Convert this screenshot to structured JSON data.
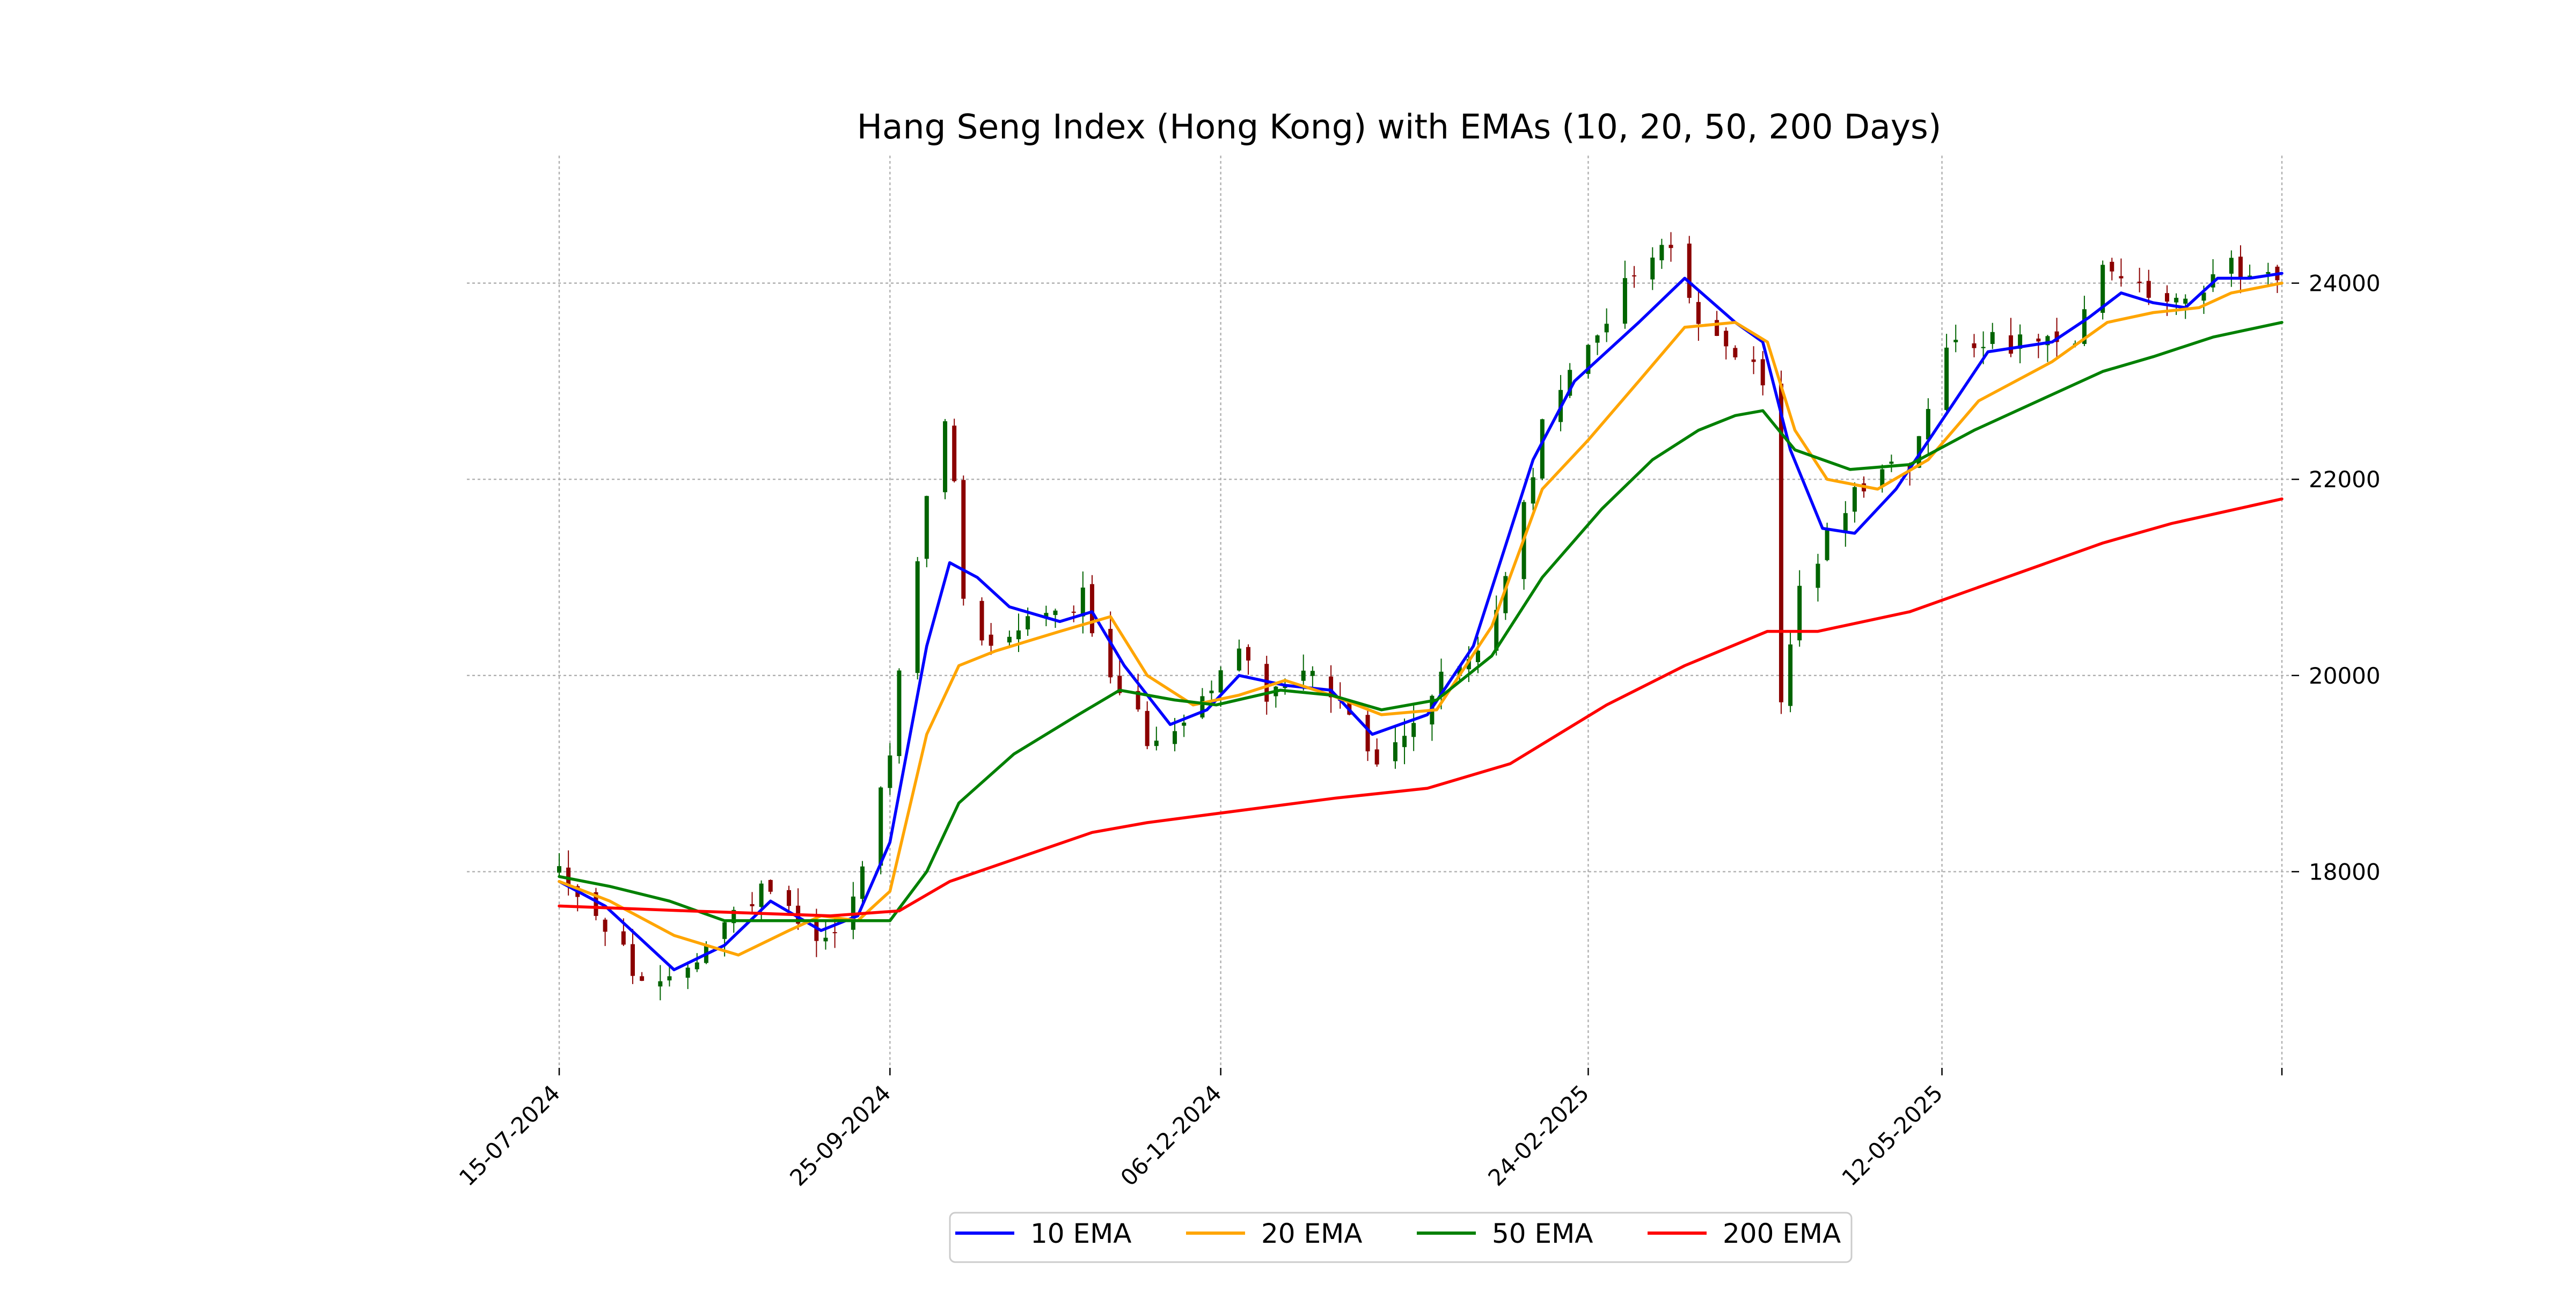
{
  "chart_data": {
    "type": "candlestick",
    "title": "Hang Seng Index (Hong Kong) with EMAs (10, 20, 50, 200 Days)",
    "xlabel": "",
    "ylabel": "",
    "x_range": [
      "2024-07-15",
      "2025-07-25"
    ],
    "ylim": [
      16000,
      25300
    ],
    "y_ticks": [
      18000,
      20000,
      22000,
      24000
    ],
    "y_axis_side": "right",
    "grid": true,
    "x_tick_dates": [
      "2024-07-15",
      "2024-09-25",
      "2024-12-06",
      "2025-02-24",
      "2025-05-12",
      "2025-07-25"
    ],
    "x_tick_labels": [
      "15-07-2024",
      "25-09-2024",
      "06-12-2024",
      "24-02-2025",
      "12-05-2025",
      ""
    ],
    "legend_position": "bottom-center",
    "candle_colors": {
      "up": "#006400",
      "down": "#8b0000"
    },
    "price_knots": [
      [
        "2024-07-15",
        18050
      ],
      [
        "2024-07-24",
        17500
      ],
      [
        "2024-08-05",
        16700
      ],
      [
        "2024-08-16",
        17300
      ],
      [
        "2024-08-30",
        17900
      ],
      [
        "2024-09-10",
        17300
      ],
      [
        "2024-09-16",
        17550
      ],
      [
        "2024-09-24",
        19000
      ],
      [
        "2024-10-02",
        21500
      ],
      [
        "2024-10-08",
        22800
      ],
      [
        "2024-10-10",
        21000
      ],
      [
        "2024-10-14",
        20300
      ],
      [
        "2024-10-25",
        20600
      ],
      [
        "2024-11-06",
        20800
      ],
      [
        "2024-11-12",
        19900
      ],
      [
        "2024-11-20",
        19400
      ],
      [
        "2024-11-28",
        19500
      ],
      [
        "2024-12-09",
        20300
      ],
      [
        "2024-12-16",
        19850
      ],
      [
        "2024-12-27",
        20000
      ],
      [
        "2025-01-10",
        19000
      ],
      [
        "2025-01-20",
        19800
      ],
      [
        "2025-02-03",
        20400
      ],
      [
        "2025-02-14",
        22500
      ],
      [
        "2025-02-24",
        23400
      ],
      [
        "2025-03-07",
        24200
      ],
      [
        "2025-03-14",
        24400
      ],
      [
        "2025-03-20",
        23600
      ],
      [
        "2025-04-03",
        23000
      ],
      [
        "2025-04-07",
        19800
      ],
      [
        "2025-04-10",
        20700
      ],
      [
        "2025-04-17",
        21400
      ],
      [
        "2025-04-25",
        22000
      ],
      [
        "2025-05-05",
        22200
      ],
      [
        "2025-05-14",
        23500
      ],
      [
        "2025-05-26",
        23400
      ],
      [
        "2025-06-09",
        23300
      ],
      [
        "2025-06-17",
        24200
      ],
      [
        "2025-06-26",
        23900
      ],
      [
        "2025-07-03",
        23700
      ],
      [
        "2025-07-11",
        24200
      ],
      [
        "2025-07-25",
        24100
      ]
    ],
    "series": [
      {
        "name": "10 EMA",
        "color": "#0000ff",
        "values": [
          [
            "2024-07-15",
            17900
          ],
          [
            "2024-07-25",
            17650
          ],
          [
            "2024-08-09",
            17000
          ],
          [
            "2024-08-20",
            17250
          ],
          [
            "2024-08-30",
            17700
          ],
          [
            "2024-09-10",
            17400
          ],
          [
            "2024-09-18",
            17550
          ],
          [
            "2024-09-25",
            18300
          ],
          [
            "2024-10-03",
            20300
          ],
          [
            "2024-10-08",
            21150
          ],
          [
            "2024-10-14",
            21000
          ],
          [
            "2024-10-21",
            20700
          ],
          [
            "2024-11-01",
            20550
          ],
          [
            "2024-11-08",
            20650
          ],
          [
            "2024-11-15",
            20100
          ],
          [
            "2024-11-25",
            19500
          ],
          [
            "2024-12-03",
            19650
          ],
          [
            "2024-12-10",
            20000
          ],
          [
            "2024-12-20",
            19900
          ],
          [
            "2024-12-30",
            19850
          ],
          [
            "2025-01-08",
            19400
          ],
          [
            "2025-01-20",
            19600
          ],
          [
            "2025-01-30",
            20300
          ],
          [
            "2025-02-12",
            22200
          ],
          [
            "2025-02-21",
            23000
          ],
          [
            "2025-03-07",
            23600
          ],
          [
            "2025-03-17",
            24050
          ],
          [
            "2025-03-28",
            23600
          ],
          [
            "2025-04-03",
            23400
          ],
          [
            "2025-04-09",
            22300
          ],
          [
            "2025-04-16",
            21500
          ],
          [
            "2025-04-23",
            21450
          ],
          [
            "2025-05-02",
            21900
          ],
          [
            "2025-05-12",
            22600
          ],
          [
            "2025-05-22",
            23300
          ],
          [
            "2025-06-05",
            23400
          ],
          [
            "2025-06-13",
            23650
          ],
          [
            "2025-06-20",
            23900
          ],
          [
            "2025-06-27",
            23800
          ],
          [
            "2025-07-04",
            23750
          ],
          [
            "2025-07-11",
            24050
          ],
          [
            "2025-07-18",
            24050
          ],
          [
            "2025-07-25",
            24100
          ]
        ]
      },
      {
        "name": "20 EMA",
        "color": "#ffa500",
        "values": [
          [
            "2024-07-15",
            17900
          ],
          [
            "2024-07-26",
            17700
          ],
          [
            "2024-08-09",
            17350
          ],
          [
            "2024-08-23",
            17150
          ],
          [
            "2024-09-03",
            17400
          ],
          [
            "2024-09-10",
            17550
          ],
          [
            "2024-09-18",
            17500
          ],
          [
            "2024-09-25",
            17800
          ],
          [
            "2024-10-03",
            19400
          ],
          [
            "2024-10-10",
            20100
          ],
          [
            "2024-10-18",
            20250
          ],
          [
            "2024-11-01",
            20450
          ],
          [
            "2024-11-12",
            20600
          ],
          [
            "2024-11-20",
            20000
          ],
          [
            "2024-11-30",
            19700
          ],
          [
            "2024-12-10",
            19800
          ],
          [
            "2024-12-20",
            19950
          ],
          [
            "2024-12-30",
            19800
          ],
          [
            "2025-01-10",
            19600
          ],
          [
            "2025-01-22",
            19650
          ],
          [
            "2025-02-03",
            20500
          ],
          [
            "2025-02-14",
            21900
          ],
          [
            "2025-02-24",
            22400
          ],
          [
            "2025-03-07",
            23000
          ],
          [
            "2025-03-17",
            23550
          ],
          [
            "2025-03-28",
            23600
          ],
          [
            "2025-04-04",
            23400
          ],
          [
            "2025-04-10",
            22500
          ],
          [
            "2025-04-17",
            22000
          ],
          [
            "2025-04-28",
            21900
          ],
          [
            "2025-05-09",
            22200
          ],
          [
            "2025-05-20",
            22800
          ],
          [
            "2025-06-05",
            23200
          ],
          [
            "2025-06-17",
            23600
          ],
          [
            "2025-06-27",
            23700
          ],
          [
            "2025-07-07",
            23750
          ],
          [
            "2025-07-14",
            23900
          ],
          [
            "2025-07-25",
            24000
          ]
        ]
      },
      {
        "name": "50 EMA",
        "color": "#008000",
        "values": [
          [
            "2024-07-15",
            17950
          ],
          [
            "2024-07-26",
            17850
          ],
          [
            "2024-08-08",
            17700
          ],
          [
            "2024-08-20",
            17500
          ],
          [
            "2024-09-03",
            17500
          ],
          [
            "2024-09-13",
            17500
          ],
          [
            "2024-09-25",
            17500
          ],
          [
            "2024-10-03",
            18000
          ],
          [
            "2024-10-10",
            18700
          ],
          [
            "2024-10-22",
            19200
          ],
          [
            "2024-11-05",
            19600
          ],
          [
            "2024-11-14",
            19850
          ],
          [
            "2024-11-26",
            19750
          ],
          [
            "2024-12-05",
            19700
          ],
          [
            "2024-12-19",
            19850
          ],
          [
            "2024-12-30",
            19800
          ],
          [
            "2025-01-10",
            19650
          ],
          [
            "2025-01-22",
            19750
          ],
          [
            "2025-02-03",
            20200
          ],
          [
            "2025-02-14",
            21000
          ],
          [
            "2025-02-27",
            21700
          ],
          [
            "2025-03-10",
            22200
          ],
          [
            "2025-03-20",
            22500
          ],
          [
            "2025-03-28",
            22650
          ],
          [
            "2025-04-03",
            22700
          ],
          [
            "2025-04-10",
            22300
          ],
          [
            "2025-04-22",
            22100
          ],
          [
            "2025-05-05",
            22150
          ],
          [
            "2025-05-19",
            22500
          ],
          [
            "2025-06-02",
            22800
          ],
          [
            "2025-06-16",
            23100
          ],
          [
            "2025-06-27",
            23250
          ],
          [
            "2025-07-10",
            23450
          ],
          [
            "2025-07-25",
            23600
          ]
        ]
      },
      {
        "name": "200 EMA",
        "color": "#ff0000",
        "values": [
          [
            "2024-07-15",
            17650
          ],
          [
            "2024-08-12",
            17600
          ],
          [
            "2024-09-12",
            17550
          ],
          [
            "2024-09-27",
            17600
          ],
          [
            "2024-10-08",
            17900
          ],
          [
            "2024-11-08",
            18400
          ],
          [
            "2024-11-20",
            18500
          ],
          [
            "2024-12-31",
            18750
          ],
          [
            "2025-01-20",
            18850
          ],
          [
            "2025-02-07",
            19100
          ],
          [
            "2025-02-28",
            19700
          ],
          [
            "2025-03-17",
            20100
          ],
          [
            "2025-04-04",
            20450
          ],
          [
            "2025-04-15",
            20450
          ],
          [
            "2025-05-05",
            20650
          ],
          [
            "2025-05-26",
            21000
          ],
          [
            "2025-06-16",
            21350
          ],
          [
            "2025-07-01",
            21550
          ],
          [
            "2025-07-25",
            21800
          ]
        ]
      }
    ]
  }
}
